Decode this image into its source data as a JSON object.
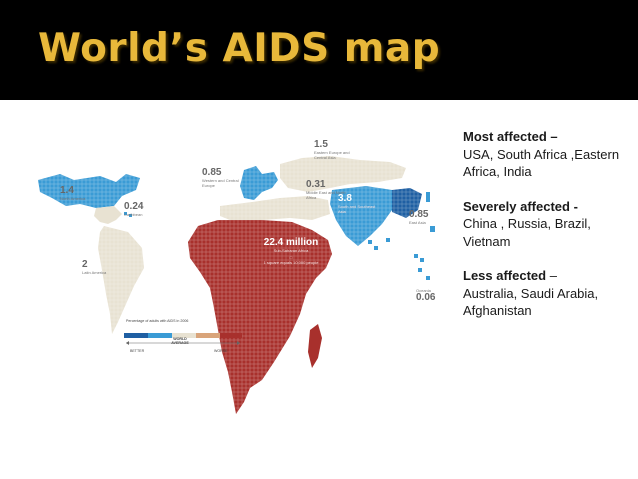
{
  "slide": {
    "title": "World’s AIDS map",
    "colors": {
      "title": "#e8b83a",
      "title_bar": "#000000",
      "severe": "#a8302c",
      "high": "#3a9bd5",
      "medium": "#e8e2d2"
    }
  },
  "map": {
    "regions": [
      {
        "key": "north_america",
        "value": "1.4",
        "name": "North America"
      },
      {
        "key": "caribbean",
        "value": "0.24",
        "name": "Caribbean"
      },
      {
        "key": "latin_america",
        "value": "2",
        "name": "Latin America"
      },
      {
        "key": "western_europe",
        "value": "0.85",
        "name": "Western and Central Europe"
      },
      {
        "key": "eastern_europe",
        "value": "1.5",
        "name": "Eastern Europe and Central Asia"
      },
      {
        "key": "middle_east",
        "value": "0.31",
        "name": "Middle East and North Africa"
      },
      {
        "key": "south_asia",
        "value": "3.8",
        "name": "South and Southeast Asia"
      },
      {
        "key": "east_asia",
        "value": "0.85",
        "name": "East Asia"
      },
      {
        "key": "oceania",
        "value": "0.06",
        "name": "Oceania"
      },
      {
        "key": "africa",
        "value": "22.4 million",
        "name": "Sub-Saharan Africa"
      }
    ],
    "square_note": "1 square equals 10,000 people",
    "legend": {
      "caption": "Percentage of adults with AIDS in 2006",
      "better": "BETTER",
      "average": "WORLD AVERAGE",
      "worse": "WORSE"
    }
  },
  "notes": [
    {
      "heading": "Most affected –",
      "body": "USA, South Africa ,Eastern  Africa, India"
    },
    {
      "heading": "Severely affected -",
      "body": "China , Russia, Brazil, Vietnam"
    },
    {
      "heading": "Less affected",
      "heading_tail": " –",
      "body": "Australia, Saudi Arabia, Afghanistan"
    }
  ]
}
